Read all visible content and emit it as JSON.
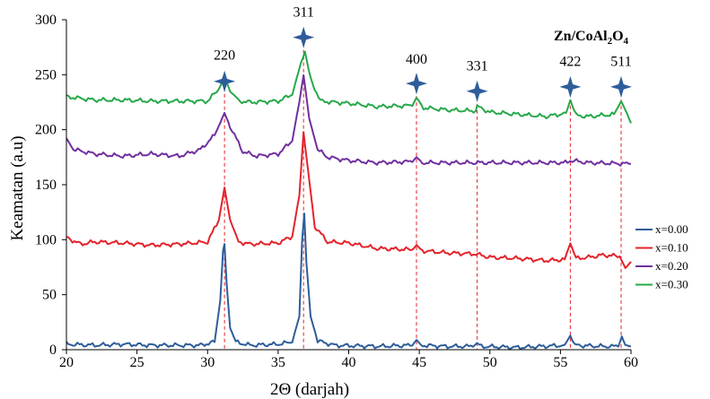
{
  "chart_data": {
    "type": "line",
    "title": "Zn/CoAl2O4",
    "title_parts": {
      "a": "Zn/CoAl",
      "b": "2",
      "c": "O",
      "d": "4"
    },
    "xlabel": "2Θ (darjah)",
    "ylabel": "Keamatan (a.u)",
    "xlim": [
      20,
      60
    ],
    "ylim": [
      0,
      300
    ],
    "x_ticks": [
      "20",
      "25",
      "30",
      "35",
      "40",
      "45",
      "50",
      "55",
      "60"
    ],
    "y_ticks": [
      "0",
      "50",
      "100",
      "150",
      "200",
      "250",
      "300"
    ],
    "grid": false,
    "legend_position": "right",
    "peaks": [
      {
        "label": "220",
        "x": 31.2,
        "marker_y": 244,
        "label_y": 268
      },
      {
        "label": "311",
        "x": 36.8,
        "marker_y": 284,
        "label_y": 307
      },
      {
        "label": "400",
        "x": 44.8,
        "marker_y": 242,
        "label_y": 264
      },
      {
        "label": "331",
        "x": 49.1,
        "marker_y": 235,
        "label_y": 258
      },
      {
        "label": "422",
        "x": 55.7,
        "marker_y": 239,
        "label_y": 262
      },
      {
        "label": "511",
        "x": 59.3,
        "marker_y": 239,
        "label_y": 262
      }
    ],
    "series": [
      {
        "name": "x=0.00",
        "color": "#2e5d9a",
        "x": [
          20,
          22,
          24,
          26,
          28,
          29.5,
          30.5,
          30.9,
          31.1,
          31.2,
          31.35,
          31.6,
          32,
          33,
          35,
          36,
          36.5,
          36.7,
          36.85,
          37,
          37.3,
          37.8,
          39,
          42,
          44.5,
          44.8,
          45.1,
          47,
          48.8,
          49.1,
          49.4,
          52,
          55.3,
          55.7,
          56,
          58,
          59.1,
          59.35,
          59.6,
          60
        ],
        "y": [
          5,
          4,
          5,
          4,
          4,
          4,
          7,
          45,
          90,
          96,
          60,
          20,
          7,
          4,
          5,
          7,
          30,
          100,
          124,
          80,
          30,
          8,
          4,
          3,
          4,
          9,
          4,
          3,
          3,
          6,
          3,
          2,
          4,
          13,
          4,
          3,
          3,
          12,
          4,
          3
        ]
      },
      {
        "name": "x=0.10",
        "color": "#e3232b",
        "x": [
          20,
          21,
          22,
          24,
          26,
          28,
          30,
          30.8,
          31.2,
          31.6,
          32.2,
          33,
          35,
          36,
          36.5,
          36.8,
          37.1,
          37.6,
          38.5,
          40,
          42,
          44.5,
          44.8,
          45.2,
          47,
          49,
          50,
          52,
          54,
          55.3,
          55.7,
          56.1,
          57,
          58,
          59.2,
          59.6,
          60
        ],
        "y": [
          102,
          96,
          98,
          97,
          95,
          96,
          98,
          118,
          147,
          118,
          98,
          96,
          97,
          103,
          140,
          198,
          165,
          112,
          98,
          97,
          92,
          91,
          95,
          90,
          88,
          87,
          84,
          83,
          81,
          82,
          97,
          83,
          84,
          86,
          85,
          74,
          80
        ]
      },
      {
        "name": "x=0.20",
        "color": "#7030a0",
        "x": [
          20,
          20.5,
          22,
          24,
          26,
          28,
          29.5,
          30.5,
          31.2,
          31.6,
          32.5,
          33.5,
          35,
          36,
          36.5,
          36.8,
          37.2,
          37.8,
          38.5,
          40,
          42,
          44.5,
          44.8,
          45.2,
          47,
          49,
          52,
          55.5,
          55.7,
          57,
          60
        ],
        "y": [
          192,
          182,
          178,
          176,
          178,
          176,
          182,
          195,
          215,
          203,
          180,
          176,
          178,
          190,
          225,
          250,
          210,
          182,
          175,
          172,
          170,
          171,
          175,
          170,
          170,
          170,
          170,
          170,
          172,
          170,
          169
        ]
      },
      {
        "name": "x=0.30",
        "color": "#27a84a",
        "x": [
          20,
          22,
          24,
          26,
          28,
          30,
          30.8,
          31.2,
          31.6,
          32.3,
          33,
          35,
          36,
          36.6,
          36.9,
          37.3,
          38,
          40,
          42,
          44.5,
          44.8,
          45.3,
          47,
          49,
          49.1,
          50,
          52,
          54,
          55.4,
          55.7,
          56.1,
          57,
          58.8,
          59.3,
          59.7,
          60
        ],
        "y": [
          230,
          227,
          227,
          226,
          226,
          226,
          237,
          248,
          235,
          226,
          225,
          226,
          232,
          260,
          271,
          246,
          226,
          224,
          221,
          222,
          229,
          220,
          218,
          217,
          221,
          216,
          214,
          212,
          215,
          227,
          213,
          212,
          214,
          226,
          215,
          206
        ]
      }
    ]
  }
}
